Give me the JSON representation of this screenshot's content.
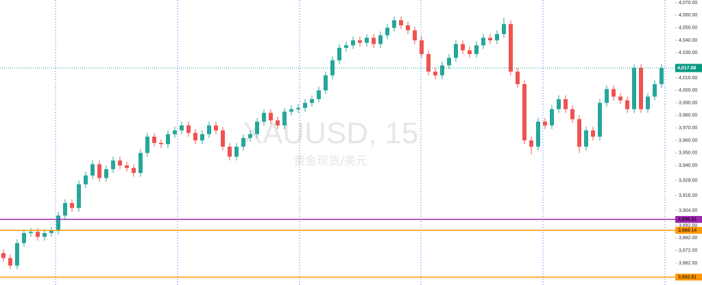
{
  "chart_data": {
    "type": "candlestick",
    "title": "XAUUSD, 15",
    "subtitle": "黄金现货/美元",
    "up_color": "#26a69a",
    "down_color": "#ef5350",
    "ylim": [
      3844.5,
      4072.2
    ],
    "yticks": [
      {
        "value": 4070,
        "label": "4,070.00"
      },
      {
        "value": 4060,
        "label": "4,060.00"
      },
      {
        "value": 4050,
        "label": "4,050.00"
      },
      {
        "value": 4040,
        "label": "4,040.00"
      },
      {
        "value": 4030,
        "label": "4,030.00"
      },
      {
        "value": 4010,
        "label": "4,010.00"
      },
      {
        "value": 4000,
        "label": "4,000.00"
      },
      {
        "value": 3990,
        "label": "3,990.00"
      },
      {
        "value": 3980,
        "label": "3,980.00"
      },
      {
        "value": 3970,
        "label": "3,970.00"
      },
      {
        "value": 3960,
        "label": "3,960.00"
      },
      {
        "value": 3950,
        "label": "3,950.00"
      },
      {
        "value": 3940,
        "label": "3,940.00"
      },
      {
        "value": 3928,
        "label": "3,928.00"
      },
      {
        "value": 3916,
        "label": "3,916.00"
      },
      {
        "value": 3904,
        "label": "3,904.00"
      },
      {
        "value": 3892,
        "label": "3,892.00"
      },
      {
        "value": 3882,
        "label": "3,882.00"
      },
      {
        "value": 3872,
        "label": "3,872.00"
      },
      {
        "value": 3862,
        "label": "3,862.00"
      }
    ],
    "open": [
      3870,
      3866,
      3860,
      3878,
      3886,
      3887,
      3883,
      3886,
      3888,
      3900,
      3910,
      3906,
      3925,
      3932,
      3941,
      3930,
      3937,
      3944,
      3940,
      3938,
      3934,
      3950,
      3963,
      3958,
      3957,
      3965,
      3968,
      3972,
      3966,
      3960,
      3965,
      3972,
      3968,
      3955,
      3947,
      3955,
      3962,
      3965,
      3975,
      3982,
      3976,
      3972,
      3983,
      3985,
      3986,
      3990,
      3993,
      4000,
      4012,
      4024,
      4034,
      4036,
      4040,
      4038,
      4042,
      4037,
      4044,
      4050,
      4056,
      4052,
      4048,
      4040,
      4029,
      4015,
      4012,
      4020,
      4026,
      4037,
      4032,
      4029,
      4036,
      4042,
      4040,
      4045,
      4053,
      4015,
      4005,
      3960,
      3955,
      3975,
      3972,
      3985,
      3993,
      3985,
      3977,
      3955,
      3968,
      3963,
      3990,
      4001,
      3995,
      3992,
      3985,
      4018,
      3985,
      3995,
      4005
    ],
    "high": [
      3873,
      3869,
      3881,
      3889,
      3890,
      3890,
      3889,
      3891,
      3903,
      3913,
      3913,
      3928,
      3935,
      3944,
      3944,
      3940,
      3947,
      3947,
      3943,
      3941,
      3953,
      3966,
      3966,
      3961,
      3968,
      3971,
      3975,
      3975,
      3969,
      3968,
      3975,
      3975,
      3971,
      3958,
      3958,
      3965,
      3968,
      3978,
      3985,
      3985,
      3979,
      3986,
      3988,
      3989,
      3993,
      3996,
      4003,
      4015,
      4027,
      4037,
      4039,
      4043,
      4043,
      4045,
      4045,
      4047,
      4053,
      4059,
      4059,
      4055,
      4051,
      4043,
      4032,
      4018,
      4023,
      4029,
      4040,
      4040,
      4035,
      4039,
      4045,
      4045,
      4048,
      4058,
      4056,
      4018,
      4008,
      3963,
      3978,
      3978,
      3988,
      3996,
      3996,
      3988,
      3980,
      3971,
      3971,
      3993,
      4004,
      4004,
      3998,
      3995,
      4021,
      4021,
      3998,
      4008,
      4021
    ],
    "low": [
      3863,
      3857,
      3857,
      3875,
      3883,
      3880,
      3880,
      3883,
      3885,
      3897,
      3903,
      3903,
      3922,
      3929,
      3927,
      3927,
      3934,
      3937,
      3935,
      3931,
      3931,
      3947,
      3955,
      3954,
      3954,
      3962,
      3965,
      3963,
      3957,
      3957,
      3962,
      3965,
      3952,
      3944,
      3944,
      3952,
      3959,
      3962,
      3972,
      3973,
      3969,
      3969,
      3980,
      3982,
      3983,
      3987,
      3990,
      3997,
      4009,
      4021,
      4031,
      4033,
      4035,
      4035,
      4034,
      4034,
      4041,
      4047,
      4049,
      4045,
      4037,
      4026,
      4012,
      4009,
      4009,
      4017,
      4023,
      4029,
      4026,
      4026,
      4033,
      4037,
      4037,
      4042,
      4012,
      4002,
      3957,
      3949,
      3952,
      3969,
      3969,
      3982,
      3982,
      3974,
      3950,
      3952,
      3960,
      3960,
      3987,
      3992,
      3989,
      3982,
      3982,
      3982,
      3982,
      3992,
      4002
    ],
    "close": [
      3866,
      3860,
      3878,
      3886,
      3887,
      3883,
      3886,
      3888,
      3900,
      3910,
      3906,
      3925,
      3932,
      3941,
      3930,
      3937,
      3944,
      3940,
      3938,
      3934,
      3950,
      3963,
      3958,
      3957,
      3965,
      3968,
      3972,
      3966,
      3960,
      3965,
      3972,
      3968,
      3955,
      3947,
      3955,
      3962,
      3965,
      3975,
      3982,
      3976,
      3972,
      3983,
      3985,
      3986,
      3990,
      3993,
      4000,
      4012,
      4024,
      4034,
      4036,
      4040,
      4038,
      4042,
      4037,
      4044,
      4050,
      4056,
      4052,
      4048,
      4040,
      4029,
      4015,
      4012,
      4020,
      4026,
      4037,
      4032,
      4029,
      4036,
      4042,
      4040,
      4045,
      4053,
      4015,
      4005,
      3960,
      3955,
      3975,
      3972,
      3985,
      3993,
      3985,
      3977,
      3955,
      3968,
      3963,
      3990,
      4001,
      3995,
      3992,
      3985,
      4018,
      3985,
      3995,
      4005,
      4017.88
    ],
    "hlines": [
      {
        "value": 3896.91,
        "label": "3,896.91",
        "color": "#9c27b0"
      },
      {
        "value": 3888.14,
        "label": "3,888.14",
        "color": "#ff9800"
      },
      {
        "value": 3850.81,
        "label": "3,850.81",
        "color": "#ff9800"
      }
    ],
    "last_price": {
      "value": 4017.88,
      "label": "4,017.88",
      "color": "#089981"
    }
  }
}
